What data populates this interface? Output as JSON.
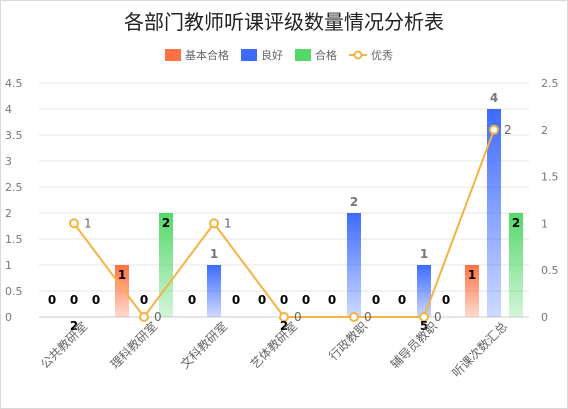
{
  "chart_data": {
    "type": "bar",
    "title": "各部门教师听课评级数量情况分析表",
    "categories": [
      "公共教研室",
      "理科教研室",
      "文科教研室",
      "艺体教研室",
      "行政教职",
      "辅导员教职",
      "听课次数汇总"
    ],
    "series": [
      {
        "name": "基本合格",
        "type": "bar",
        "axis": "left",
        "values": [
          0,
          1,
          0,
          0,
          0,
          0,
          1
        ],
        "color": "#ff7043"
      },
      {
        "name": "良好",
        "type": "bar",
        "axis": "left",
        "values": [
          0,
          0,
          1,
          0,
          2,
          1,
          4
        ],
        "color": "#3d6bff"
      },
      {
        "name": "合格",
        "type": "bar",
        "axis": "left",
        "values": [
          0,
          2,
          0,
          0,
          0,
          0,
          2
        ],
        "color": "#54d86a"
      },
      {
        "name": "优秀",
        "type": "line",
        "axis": "right",
        "values": [
          1,
          0,
          1,
          0,
          0,
          0,
          2
        ],
        "color": "#f5b342"
      }
    ],
    "y_left": {
      "min": 0,
      "max": 4.5,
      "ticks": [
        "0",
        "0.5",
        "1",
        "1.5",
        "2",
        "2.5",
        "3",
        "3.5",
        "4",
        "4.5"
      ]
    },
    "y_right": {
      "min": 0,
      "max": 2.5,
      "ticks": [
        "0",
        "0.5",
        "1",
        "1.5",
        "2",
        "2.5"
      ]
    },
    "extra_labels": [
      {
        "category": 0,
        "text": "2"
      },
      {
        "category": 3,
        "text": "2"
      },
      {
        "category": 5,
        "text": "5"
      }
    ],
    "legend_position": "top",
    "grid": true
  }
}
